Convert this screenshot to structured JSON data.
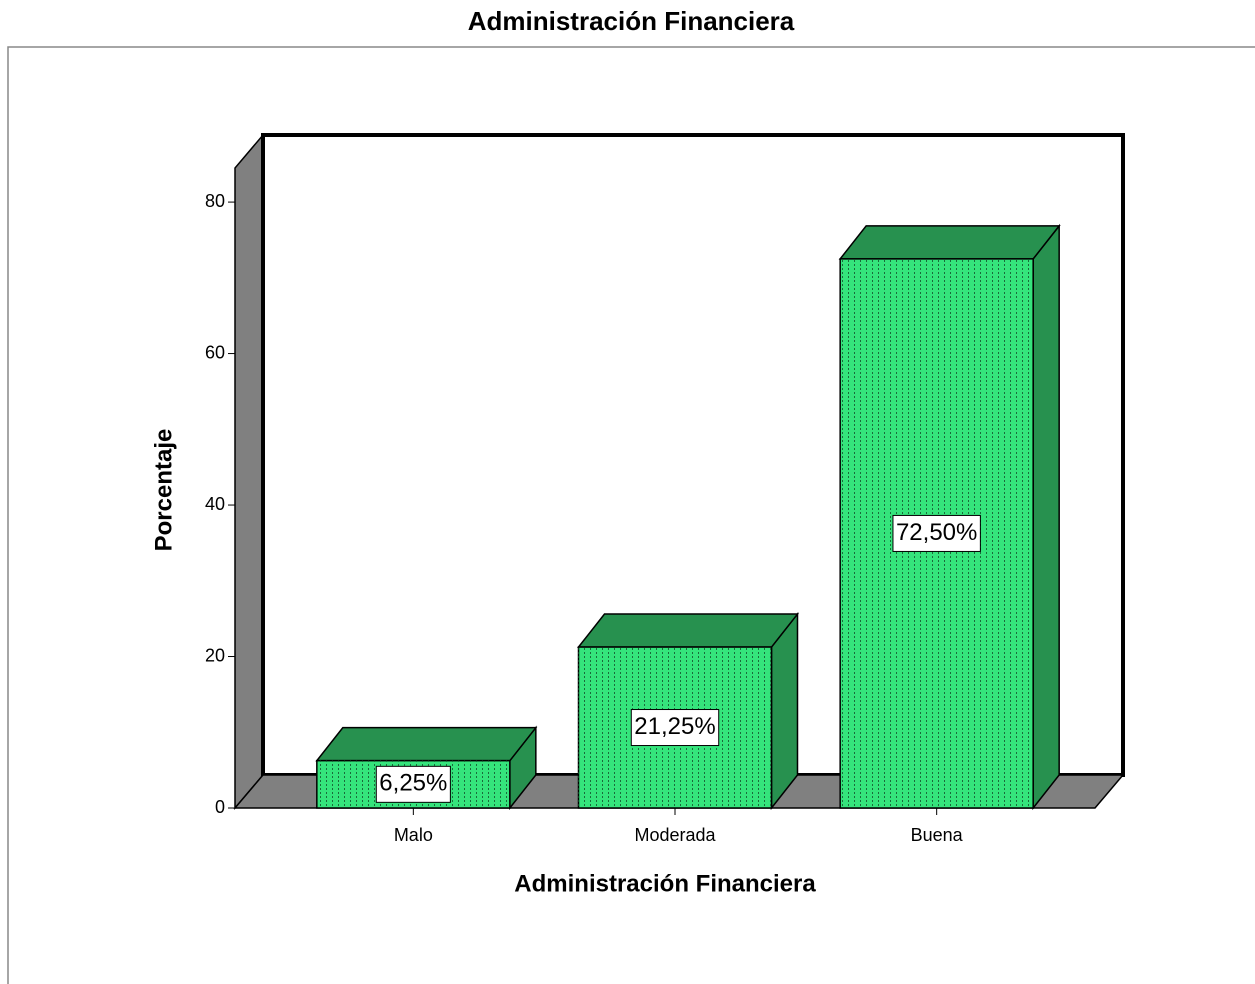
{
  "chart_data": {
    "type": "bar3d",
    "title": "Administración Financiera",
    "x_label": "Administración Financiera",
    "y_label": "Porcentaje",
    "categories": [
      "Malo",
      "Moderada",
      "Buena"
    ],
    "values": [
      6.25,
      21.25,
      72.5
    ],
    "value_labels": [
      "6,25%",
      "21,25%",
      "72,50%"
    ],
    "color": "#35e47c",
    "ylim": [
      0,
      84.5
    ],
    "yticks": [
      0,
      20,
      40,
      60,
      80
    ]
  }
}
